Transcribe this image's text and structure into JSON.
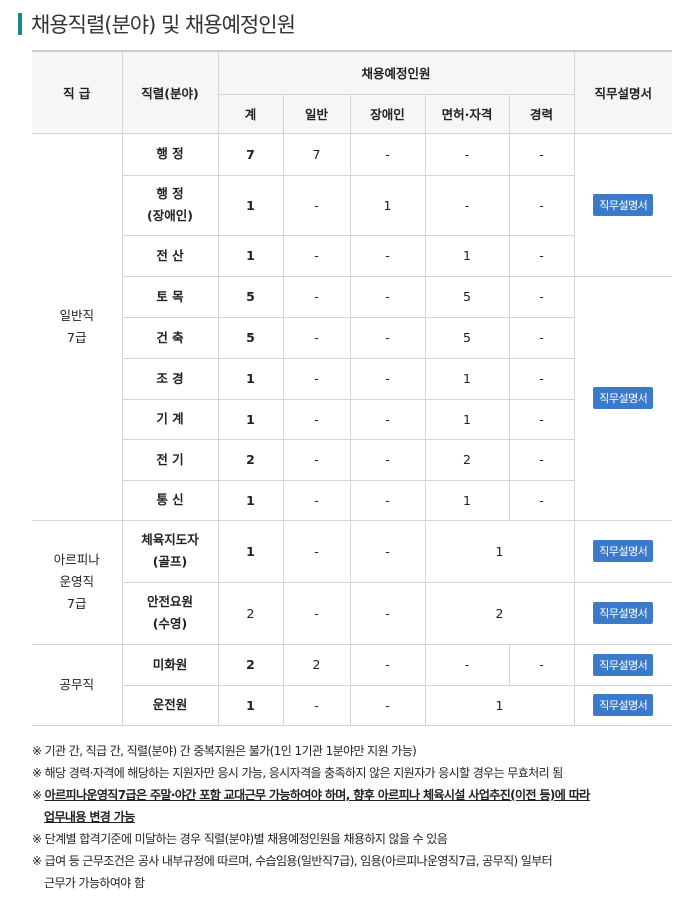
{
  "title": "채용직렬(분야) 및 채용예정인원",
  "header": {
    "grade": "직 급",
    "field": "직렬(분야)",
    "planned": "채용예정인원",
    "total": "계",
    "general": "일반",
    "disabled": "장애인",
    "license": "면허·자격",
    "career": "경력",
    "jobdesc": "직무설명서"
  },
  "button_label": "직무설명서",
  "accent_color": "#3b7ac8",
  "groups": {
    "g1": "일반직\n7급",
    "g2": "아르피나\n운영직\n7급",
    "g3": "공무직"
  },
  "rows": [
    {
      "field": "행 정",
      "total": "7",
      "general": "7",
      "disabled": "-",
      "license": "-",
      "career": "-"
    },
    {
      "field": "행 정\n(장애인)",
      "total": "1",
      "general": "-",
      "disabled": "1",
      "license": "-",
      "career": "-"
    },
    {
      "field": "전 산",
      "total": "1",
      "general": "-",
      "disabled": "-",
      "license": "1",
      "career": "-"
    },
    {
      "field": "토 목",
      "total": "5",
      "general": "-",
      "disabled": "-",
      "license": "5",
      "career": "-"
    },
    {
      "field": "건 축",
      "total": "5",
      "general": "-",
      "disabled": "-",
      "license": "5",
      "career": "-"
    },
    {
      "field": "조 경",
      "total": "1",
      "general": "-",
      "disabled": "-",
      "license": "1",
      "career": "-"
    },
    {
      "field": "기 계",
      "total": "1",
      "general": "-",
      "disabled": "-",
      "license": "1",
      "career": "-"
    },
    {
      "field": "전 기",
      "total": "2",
      "general": "-",
      "disabled": "-",
      "license": "2",
      "career": "-"
    },
    {
      "field": "통 신",
      "total": "1",
      "general": "-",
      "disabled": "-",
      "license": "1",
      "career": "-"
    },
    {
      "field": "체육지도자\n(골프)",
      "total": "1",
      "general": "-",
      "disabled": "-",
      "license_career": "1"
    },
    {
      "field": "안전요원\n(수영)",
      "total": "2",
      "general": "-",
      "disabled": "-",
      "license_career": "2"
    },
    {
      "field": "미화원",
      "total": "2",
      "general": "2",
      "disabled": "-",
      "license": "-",
      "career": "-"
    },
    {
      "field": "운전원",
      "total": "1",
      "general": "-",
      "disabled": "-",
      "license_career": "1"
    }
  ],
  "notes": [
    "※ 기관 간, 직급 간, 직렬(분야) 간 중복지원은 불가(1인 1기관 1분야만 지원 가능)",
    "※ 해당 경력·자격에 해당하는 지원자만 응시 가능, 응시자격을 충족하지 않은 지원자가 응시할 경우는 무효처리 됨",
    "※ ",
    "아르피나운영직7급은 주말·야간 포함 교대근무 가능하여야 하며, 향후 아르피나 체육시설 사업추진(이전 등)에 따라",
    "업무내용 변경 가능",
    "※ 단계별 합격기준에 미달하는 경우 직렬(분야)별 채용예정인원을 채용하지 않을 수 있음",
    "※ 급여 등 근무조건은 공사 내부규정에 따르며, 수습임용(일반직7급), 임용(아르피나운영직7급, 공무직) 일부터",
    "근무가 가능하여야 함"
  ]
}
